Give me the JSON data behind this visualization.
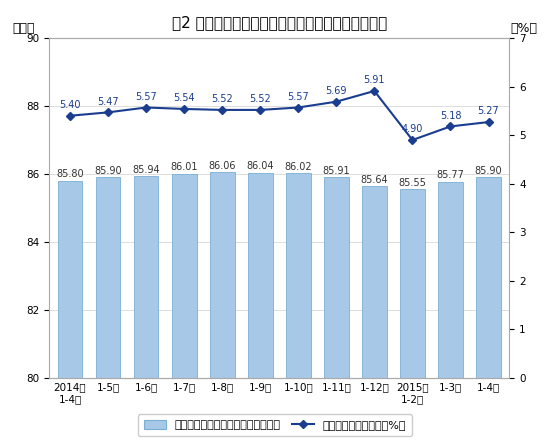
{
  "title": "图2 各月累计利润率与每百元主营业务收入中的成本",
  "categories": [
    "2014年\n1-4月",
    "1-5月",
    "1-6月",
    "1-7月",
    "1-8月",
    "1-9月",
    "1-10月",
    "1-11月",
    "1-12月",
    "2015年\n1-2月",
    "1-3月",
    "1-4月"
  ],
  "bar_values": [
    85.8,
    85.9,
    85.94,
    86.01,
    86.06,
    86.04,
    86.02,
    85.91,
    85.64,
    85.55,
    85.77,
    85.9
  ],
  "line_values": [
    5.4,
    5.47,
    5.57,
    5.54,
    5.52,
    5.52,
    5.57,
    5.69,
    5.91,
    4.9,
    5.18,
    5.27
  ],
  "bar_color": "#a8c8e8",
  "bar_edge_color": "#7aafd4",
  "line_color": "#1a3d8f",
  "marker_color": "#1a3d8f",
  "left_ylabel": "（元）",
  "right_ylabel": "（%）",
  "left_ylim": [
    80,
    90
  ],
  "right_ylim": [
    0,
    7
  ],
  "left_yticks": [
    80,
    82,
    84,
    86,
    88,
    90
  ],
  "right_yticks": [
    0,
    1,
    2,
    3,
    4,
    5,
    6,
    7
  ],
  "legend_bar": "每百元主营业务收入中的成本（元）",
  "legend_line": "主营业务收入利润率（%）",
  "background_color": "#ffffff",
  "plot_bg_color": "#ffffff",
  "grid_color": "#d0d0d0",
  "border_color": "#aaaaaa",
  "bar_label_color": "#333333",
  "line_label_color": "#1a3d8f",
  "title_fontsize": 11,
  "label_fontsize": 7,
  "tick_fontsize": 7.5,
  "legend_fontsize": 8
}
